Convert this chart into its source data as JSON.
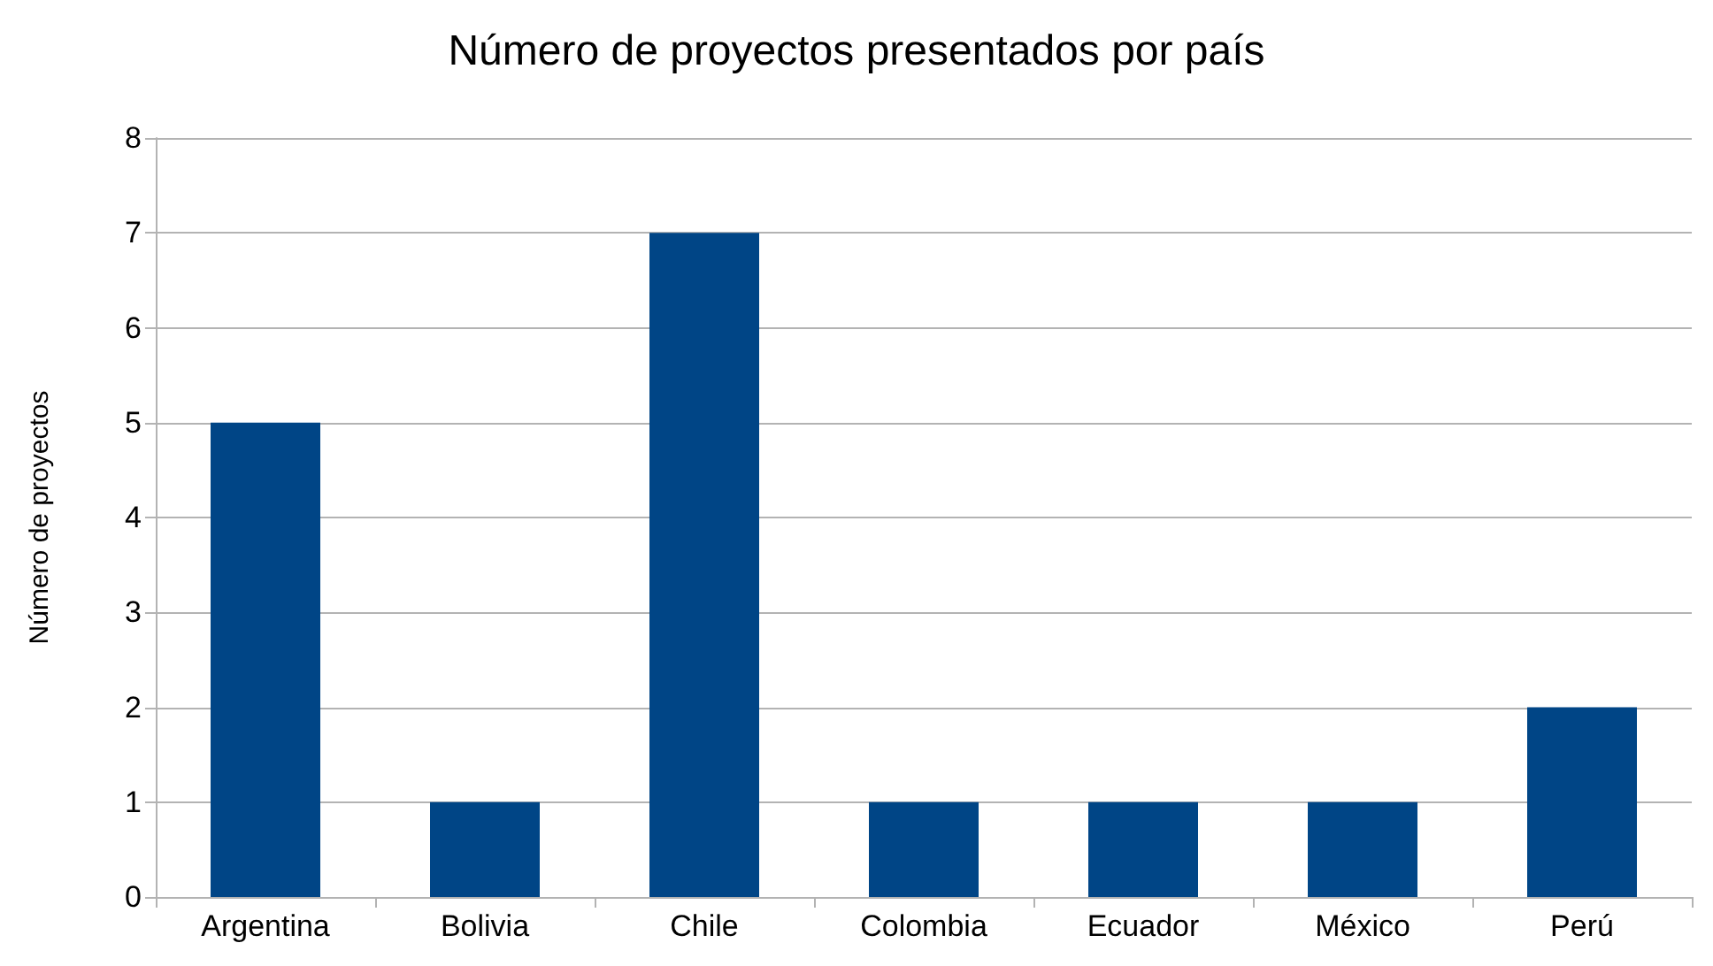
{
  "chart_data": {
    "type": "bar",
    "title": "Número de proyectos presentados por país",
    "ylabel": "Número de proyectos",
    "categories": [
      "Argentina",
      "Bolivia",
      "Chile",
      "Colombia",
      "Ecuador",
      "México",
      "Perú"
    ],
    "values": [
      5,
      1,
      7,
      1,
      1,
      1,
      2
    ],
    "color": "#004586",
    "ylim": [
      0,
      8
    ],
    "yticks": [
      0,
      1,
      2,
      3,
      4,
      5,
      6,
      7,
      8
    ],
    "grid": "y"
  }
}
